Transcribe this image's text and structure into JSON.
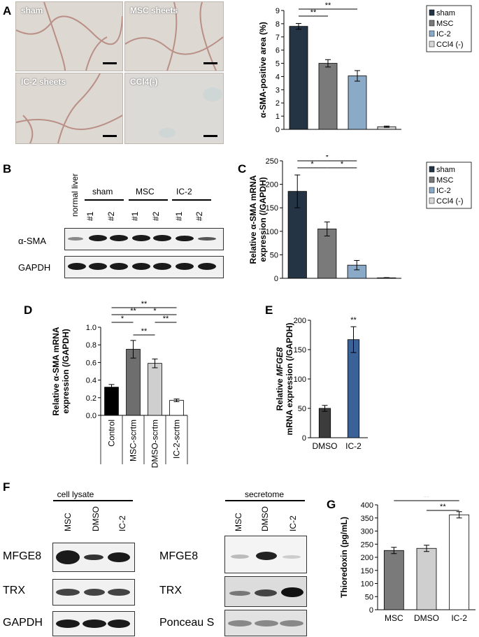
{
  "panels": {
    "A": "A",
    "B": "B",
    "C": "C",
    "D": "D",
    "E": "E",
    "F": "F",
    "G": "G"
  },
  "panelA": {
    "images": [
      "sham",
      "MSC sheets",
      "IC-2 sheets",
      "CCl4(-)"
    ],
    "chart_data": {
      "type": "bar",
      "categories": [
        "sham",
        "MSC",
        "IC-2",
        "CCl4(-)"
      ],
      "values": [
        7.8,
        5.0,
        4.05,
        0.2
      ],
      "errors": [
        0.22,
        0.28,
        0.4,
        0.05
      ],
      "ylabel": "α-SMA-positive area (%)",
      "ylim": [
        0,
        9
      ],
      "yticks": [
        "0",
        "1",
        "2",
        "3",
        "4",
        "5",
        "6",
        "7",
        "8",
        "9"
      ],
      "legend": [
        "sham",
        "MSC",
        "IC-2",
        "CCl4 (-)"
      ],
      "legend_position": "right",
      "significance": [
        "**",
        "**"
      ],
      "colors": [
        "#253444",
        "#7a7a7a",
        "#8aaac8",
        "#d8d8d8"
      ]
    }
  },
  "panelB": {
    "lane_header": "normal liver",
    "groups": [
      "sham",
      "MSC",
      "IC-2"
    ],
    "lanes": [
      "#1",
      "#2",
      "#1",
      "#2",
      "#1",
      "#2"
    ],
    "rows": [
      "α-SMA",
      "GAPDH"
    ]
  },
  "panelC": {
    "chart_data": {
      "type": "bar",
      "categories": [
        "sham",
        "MSC",
        "IC-2",
        "CCl4(-)"
      ],
      "values": [
        185,
        105,
        28,
        1
      ],
      "errors": [
        35,
        15,
        10,
        0.5
      ],
      "ylabel": "Relative α-SMA mRNA expression (/GAPDH)",
      "ylim": [
        0,
        250
      ],
      "yticks": [
        "0",
        "50",
        "100",
        "150",
        "200",
        "250"
      ],
      "legend": [
        "sham",
        "MSC",
        "IC-2",
        "CCl4 (-)"
      ],
      "legend_position": "right",
      "significance": [
        "*",
        "*",
        "*"
      ],
      "colors": [
        "#253444",
        "#7a7a7a",
        "#8aaac8",
        "#d8d8d8"
      ]
    }
  },
  "panelD": {
    "chart_data": {
      "type": "bar",
      "categories": [
        "Control",
        "MSC-scrtm",
        "DMSO-scrtm",
        "IC-2-scrtm"
      ],
      "values": [
        0.32,
        0.75,
        0.59,
        0.17
      ],
      "errors": [
        0.03,
        0.1,
        0.05,
        0.015
      ],
      "ylabel": "Relative α-SMA mRNA expression (/GAPDH)",
      "ylim": [
        0,
        1.0
      ],
      "yticks": [
        "0.0",
        "0.2",
        "0.4",
        "0.6",
        "0.8",
        "1.0"
      ],
      "significance": [
        "*",
        "**",
        "**",
        "**",
        "*",
        "**"
      ],
      "colors": [
        "#000000",
        "#6e6e6e",
        "#cfcfcf",
        "#ffffff"
      ]
    }
  },
  "panelE": {
    "chart_data": {
      "type": "bar",
      "categories": [
        "DMSO",
        "IC-2"
      ],
      "values": [
        50,
        167
      ],
      "errors": [
        5,
        22
      ],
      "ylabel_prefix": "Relative ",
      "ylabel_gene": "MFGE8",
      "ylabel_suffix": " mRNA expression (/GAPDH)",
      "ylim": [
        0,
        200
      ],
      "yticks": [
        "0",
        "50",
        "100",
        "150",
        "200"
      ],
      "significance": [
        "**"
      ],
      "colors": [
        "#3c3c3c",
        "#3a6296"
      ]
    }
  },
  "panelF": {
    "left_title": "cell lysate",
    "right_title": "secretome",
    "lanes": [
      "MSC",
      "DMSO",
      "IC-2"
    ],
    "left_rows": [
      "MFGE8",
      "TRX",
      "GAPDH"
    ],
    "right_rows": [
      "MFGE8",
      "TRX",
      "Ponceau S"
    ]
  },
  "panelG": {
    "chart_data": {
      "type": "bar",
      "categories": [
        "MSC",
        "DMSO",
        "IC-2"
      ],
      "values": [
        226,
        234,
        362
      ],
      "errors": [
        12,
        12,
        12
      ],
      "ylabel": "Thioredoxin (pg/mL)",
      "ylim": [
        0,
        400
      ],
      "yticks": [
        "0",
        "50",
        "100",
        "150",
        "200",
        "250",
        "300",
        "350",
        "400"
      ],
      "significance": [
        "**",
        "**"
      ],
      "colors": [
        "#7a7a7a",
        "#cfcfcf",
        "#ffffff"
      ]
    }
  }
}
